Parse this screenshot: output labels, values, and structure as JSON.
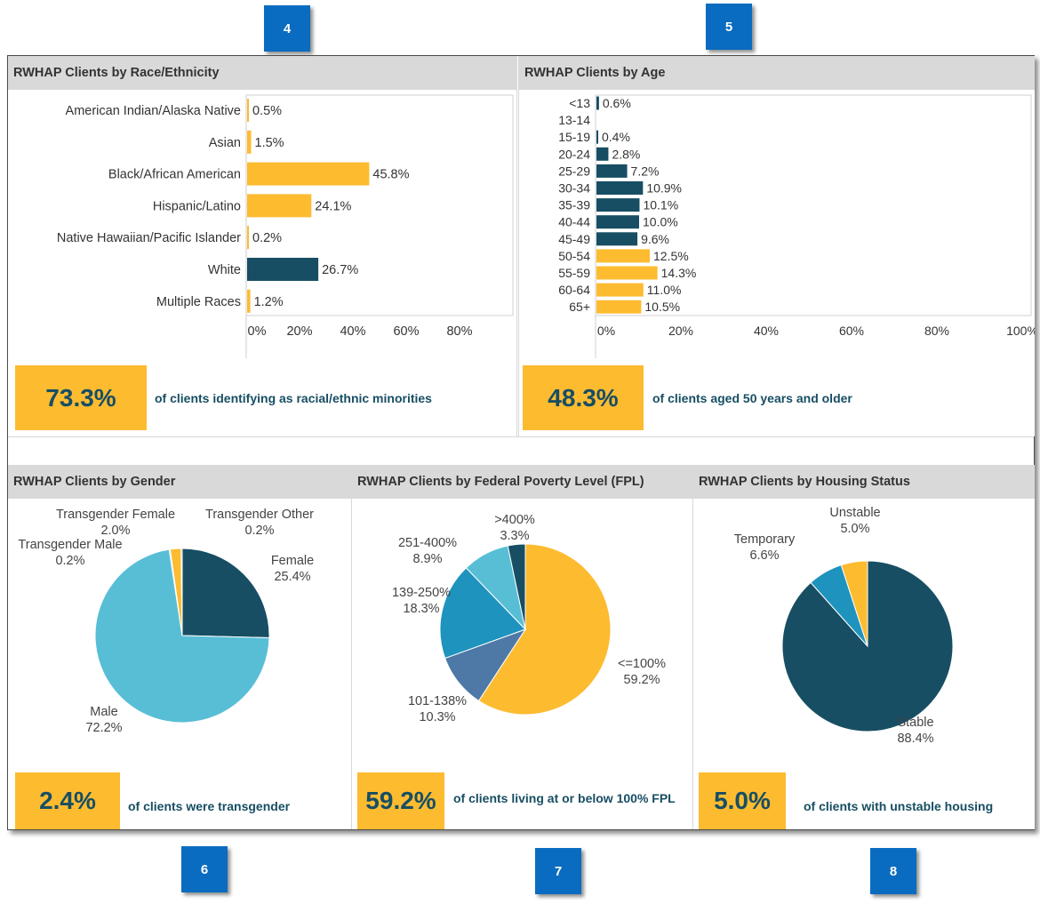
{
  "callouts": {
    "c4": "4",
    "c5": "5",
    "c6": "6",
    "c7": "7",
    "c8": "8"
  },
  "race": {
    "title": "RWHAP Clients by Race/Ethnicity",
    "stat_value": "73.3%",
    "stat_text": "of clients identifying as racial/ethnic minorities"
  },
  "age": {
    "title": "RWHAP Clients by Age",
    "stat_value": "48.3%",
    "stat_text": "of clients aged 50 years and older"
  },
  "gender": {
    "title": "RWHAP Clients by Gender",
    "stat_value": "2.4%",
    "stat_text": "of clients were transgender"
  },
  "fpl": {
    "title": "RWHAP Clients by Federal Poverty Level (FPL)",
    "stat_value": "59.2%",
    "stat_text": "of clients living at or below 100% FPL"
  },
  "housing": {
    "title": "RWHAP Clients by Housing Status",
    "stat_value": "5.0%",
    "stat_text": "of clients with unstable housing"
  },
  "colors": {
    "navy": "#174e63",
    "gold": "#fdbb30",
    "light_blue": "#58bed6",
    "mid_blue": "#1e93bd",
    "steel": "#4e79a7"
  },
  "chart_data": [
    {
      "type": "bar",
      "orientation": "horizontal",
      "title": "RWHAP Clients by Race/Ethnicity",
      "categories": [
        "American Indian/Alaska Native",
        "Asian",
        "Black/African American",
        "Hispanic/Latino",
        "Native Hawaiian/Pacific Islander",
        "White",
        "Multiple Races"
      ],
      "values": [
        0.5,
        1.5,
        45.8,
        24.1,
        0.2,
        26.7,
        1.2
      ],
      "labels": [
        "0.5%",
        "1.5%",
        "45.8%",
        "24.1%",
        "0.2%",
        "26.7%",
        "1.2%"
      ],
      "bar_colors": [
        "#fdbb30",
        "#fdbb30",
        "#fdbb30",
        "#fdbb30",
        "#fdbb30",
        "#174e63",
        "#fdbb30"
      ],
      "x_ticks": [
        "0%",
        "20%",
        "40%",
        "60%",
        "80%"
      ],
      "xlim": [
        0,
        100
      ],
      "grid": false
    },
    {
      "type": "bar",
      "orientation": "horizontal",
      "title": "RWHAP Clients by Age",
      "categories": [
        "<13",
        "13-14",
        "15-19",
        "20-24",
        "25-29",
        "30-34",
        "35-39",
        "40-44",
        "45-49",
        "50-54",
        "55-59",
        "60-64",
        "65+"
      ],
      "values": [
        0.6,
        0,
        0.4,
        2.8,
        7.2,
        10.9,
        10.1,
        10.0,
        9.6,
        12.5,
        14.3,
        11.0,
        10.5
      ],
      "labels": [
        "0.6%",
        "",
        "0.4%",
        "2.8%",
        "7.2%",
        "10.9%",
        "10.1%",
        "10.0%",
        "9.6%",
        "12.5%",
        "14.3%",
        "11.0%",
        "10.5%"
      ],
      "bar_colors": [
        "#174e63",
        "#174e63",
        "#174e63",
        "#174e63",
        "#174e63",
        "#174e63",
        "#174e63",
        "#174e63",
        "#174e63",
        "#fdbb30",
        "#fdbb30",
        "#fdbb30",
        "#fdbb30"
      ],
      "x_ticks": [
        "0%",
        "20%",
        "40%",
        "60%",
        "80%",
        "100%"
      ],
      "xlim": [
        0,
        100
      ],
      "grid": false
    },
    {
      "type": "pie",
      "title": "RWHAP Clients by Gender",
      "slices": [
        {
          "label": "Female",
          "value": 25.4,
          "text": "25.4%",
          "color": "#174e63"
        },
        {
          "label": "Male",
          "value": 72.2,
          "text": "72.2%",
          "color": "#58bed6"
        },
        {
          "label": "Transgender Male",
          "value": 0.2,
          "text": "0.2%",
          "color": "#1e93bd"
        },
        {
          "label": "Transgender Female",
          "value": 2.0,
          "text": "2.0%",
          "color": "#fdbb30"
        },
        {
          "label": "Transgender Other",
          "value": 0.2,
          "text": "0.2%",
          "color": "#174e63"
        }
      ]
    },
    {
      "type": "pie",
      "title": "RWHAP Clients by Federal Poverty Level (FPL)",
      "slices": [
        {
          "label": "<=100%",
          "value": 59.2,
          "text": "59.2%",
          "color": "#fdbb30"
        },
        {
          "label": "101-138%",
          "value": 10.3,
          "text": "10.3%",
          "color": "#4e79a7"
        },
        {
          "label": "139-250%",
          "value": 18.3,
          "text": "18.3%",
          "color": "#1e93bd"
        },
        {
          "label": "251-400%",
          "value": 8.9,
          "text": "8.9%",
          "color": "#58bed6"
        },
        {
          "label": ">400%",
          "value": 3.3,
          "text": "3.3%",
          "color": "#174e63"
        }
      ]
    },
    {
      "type": "pie",
      "title": "RWHAP Clients by Housing Status",
      "slices": [
        {
          "label": "Stable",
          "value": 88.4,
          "text": "88.4%",
          "color": "#174e63"
        },
        {
          "label": "Temporary",
          "value": 6.6,
          "text": "6.6%",
          "color": "#1e93bd"
        },
        {
          "label": "Unstable",
          "value": 5.0,
          "text": "5.0%",
          "color": "#fdbb30"
        }
      ]
    }
  ]
}
